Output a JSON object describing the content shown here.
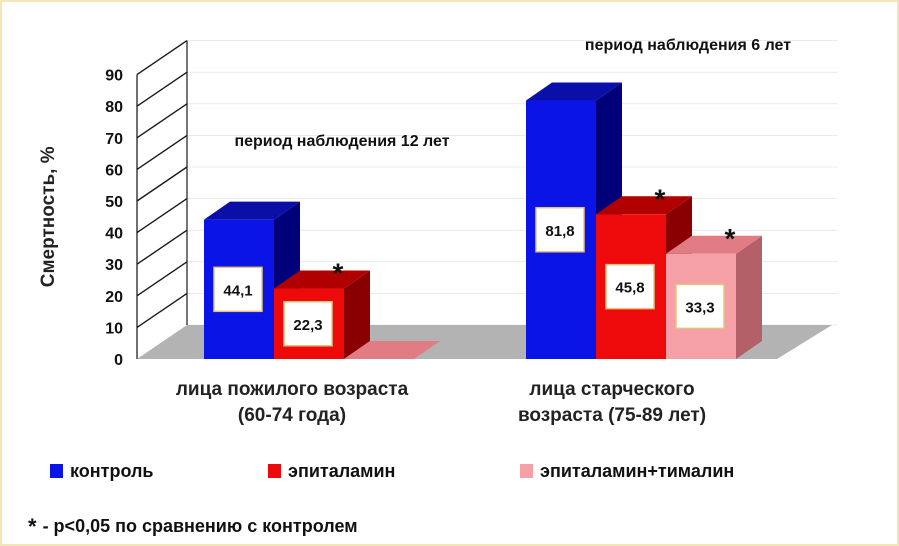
{
  "chart_data": {
    "type": "bar",
    "ylabel": "Смертность, %",
    "ylim": [
      0,
      90
    ],
    "yticks": [
      0,
      10,
      20,
      30,
      40,
      50,
      60,
      70,
      80,
      90
    ],
    "categories": [
      "лица пожилого возраста (60-74 года)",
      "лица старческого возраста (75-89 лет)"
    ],
    "category_label_lines": [
      [
        "лица пожилого возраста",
        "(60-74 года)"
      ],
      [
        "лица старческого",
        "возраста (75-89 лет)"
      ]
    ],
    "period_labels": [
      "период наблюдения 12 лет",
      "период наблюдения 6 лет"
    ],
    "series": [
      {
        "name": "контроль",
        "values": [
          44.1,
          81.8
        ],
        "labels": [
          "44,1",
          "81,8"
        ],
        "significant": [
          false,
          false
        ]
      },
      {
        "name": "эпиталамин",
        "values": [
          22.3,
          45.8
        ],
        "labels": [
          "22,3",
          "45,8"
        ],
        "significant": [
          true,
          true
        ]
      },
      {
        "name": "эпиталамин+тималин",
        "values": [
          0,
          33.3
        ],
        "labels": [
          "",
          "33,3"
        ],
        "significant": [
          false,
          true
        ]
      }
    ],
    "colors": {
      "series": [
        "#0a14e6",
        "#ee0a0a",
        "#f4a0a6"
      ],
      "series_side": [
        "#00007a",
        "#8a0000",
        "#b46068"
      ],
      "series_top": [
        "#0a0fa8",
        "#b00000",
        "#e27c84"
      ],
      "floor": "#b3b3b3",
      "wall_lines": "#1a1a1a"
    },
    "significance_marker": "*",
    "grid": true,
    "legend_position": "bottom"
  },
  "footnote": {
    "marker": "*",
    "text": "- p<0,05 по сравнению с контролем"
  }
}
